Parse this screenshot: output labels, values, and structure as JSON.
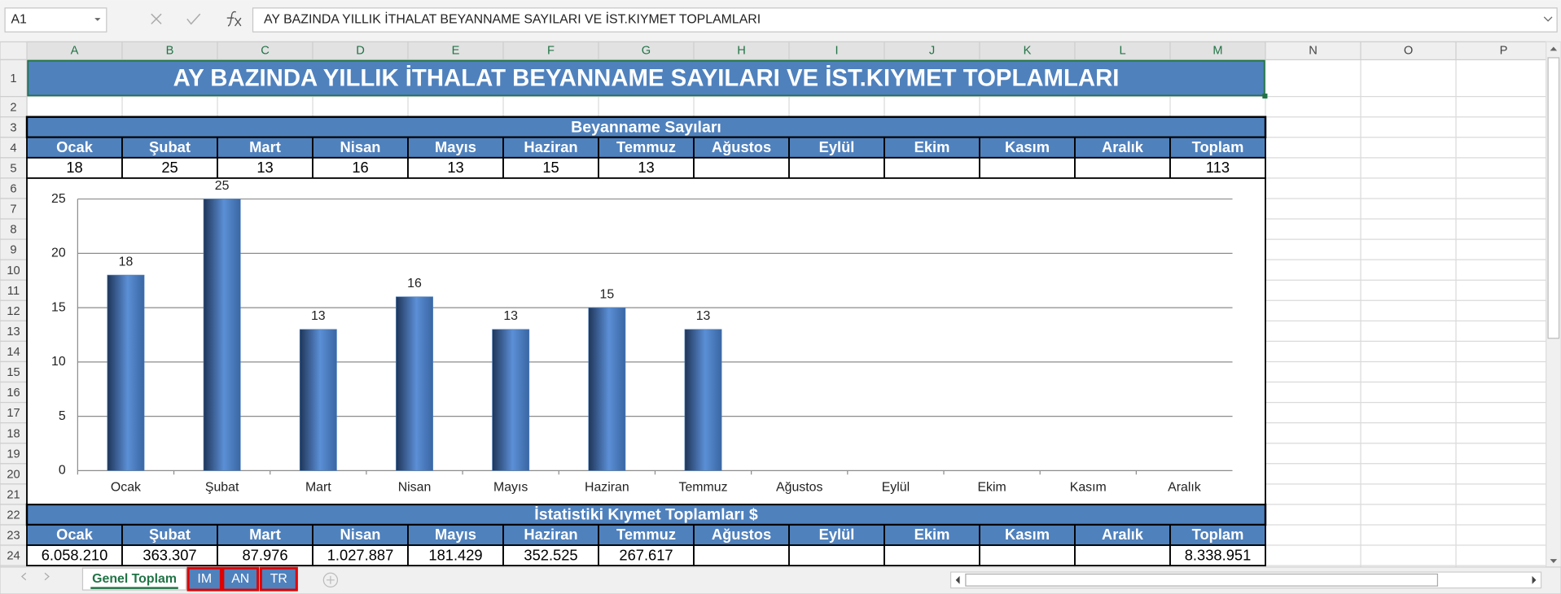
{
  "name_box": "A1",
  "formula": "AY BAZINDA YILLIK İTHALAT BEYANNAME SAYILARI VE İST.KIYMET TOPLAMLARI",
  "columns": [
    "A",
    "B",
    "C",
    "D",
    "E",
    "F",
    "G",
    "H",
    "I",
    "J",
    "K",
    "L",
    "M",
    "N",
    "O",
    "P"
  ],
  "rows": [
    1,
    2,
    3,
    4,
    5,
    6,
    7,
    8,
    9,
    10,
    11,
    12,
    13,
    14,
    15,
    16,
    17,
    18,
    19,
    20,
    21,
    22,
    23,
    24
  ],
  "title": "AY BAZINDA YILLIK İTHALAT BEYANNAME SAYILARI VE İST.KIYMET TOPLAMLARI",
  "table1": {
    "title": "Beyanname Sayıları",
    "headers": [
      "Ocak",
      "Şubat",
      "Mart",
      "Nisan",
      "Mayıs",
      "Haziran",
      "Temmuz",
      "Ağustos",
      "Eylül",
      "Ekim",
      "Kasım",
      "Aralık",
      "Toplam"
    ],
    "values": [
      18,
      25,
      13,
      16,
      13,
      15,
      13,
      null,
      null,
      null,
      null,
      null,
      113
    ]
  },
  "chart_data": {
    "type": "bar",
    "categories": [
      "Ocak",
      "Şubat",
      "Mart",
      "Nisan",
      "Mayıs",
      "Haziran",
      "Temmuz",
      "Ağustos",
      "Eylül",
      "Ekim",
      "Kasım",
      "Aralık"
    ],
    "values": [
      18,
      25,
      13,
      16,
      13,
      15,
      13,
      null,
      null,
      null,
      null,
      null
    ],
    "color": "#4f81bd",
    "ylim": [
      0,
      25
    ],
    "yticks": [
      0,
      5,
      10,
      15,
      20,
      25
    ],
    "grid": true
  },
  "table2": {
    "title": "İstatistiki Kıymet Toplamları $",
    "headers": [
      "Ocak",
      "Şubat",
      "Mart",
      "Nisan",
      "Mayıs",
      "Haziran",
      "Temmuz",
      "Ağustos",
      "Eylül",
      "Ekim",
      "Kasım",
      "Aralık",
      "Toplam"
    ],
    "values": [
      "6.058.210",
      "363.307",
      "87.976",
      "1.027.887",
      "181.429",
      "352.525",
      "267.617",
      null,
      null,
      null,
      null,
      null,
      "8.338.951"
    ]
  },
  "tabs": [
    "Genel Toplam",
    "IM",
    "AN",
    "TR"
  ]
}
